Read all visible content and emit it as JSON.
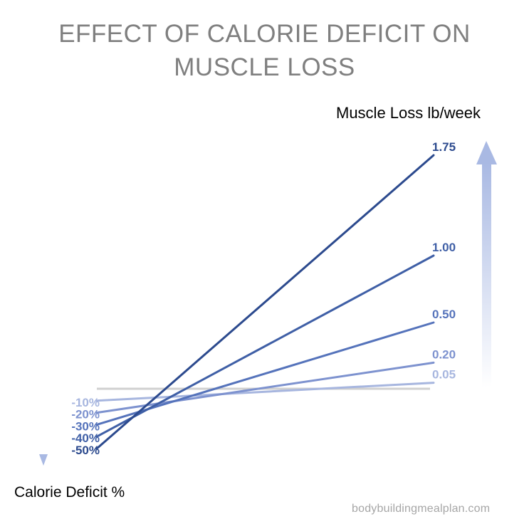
{
  "title": {
    "line1": "EFFECT OF CALORIE DEFICIT ON",
    "line2": "MUSCLE LOSS"
  },
  "ylabel": "Muscle Loss lb/week",
  "xlabel": "Calorie Deficit %",
  "watermark": "bodybuildingmealplan.com",
  "chart_data": {
    "type": "slope",
    "left_axis_label": "Calorie Deficit %",
    "right_axis_label": "Muscle Loss lb/week",
    "series": [
      {
        "name": "-10%",
        "start": -10,
        "end": 0.05,
        "color": "#a7b6df"
      },
      {
        "name": "-20%",
        "start": -20,
        "end": 0.2,
        "color": "#7d92cf"
      },
      {
        "name": "-30%",
        "start": -30,
        "end": 0.5,
        "color": "#5573bb"
      },
      {
        "name": "-40%",
        "start": -40,
        "end": 1.0,
        "color": "#3f5fa6"
      },
      {
        "name": "-50%",
        "start": -50,
        "end": 1.75,
        "color": "#2c4a8e"
      }
    ],
    "end_labels": [
      "1.75",
      "1.00",
      "0.50",
      "0.20",
      "0.05"
    ],
    "start_labels": [
      "-10%",
      "-20%",
      "-30%",
      "-40%",
      "-50%"
    ],
    "baseline_color": "#d0d0d0",
    "arrow_colors": {
      "up": "#a9b9e3",
      "down": "#a9b9e3"
    }
  }
}
